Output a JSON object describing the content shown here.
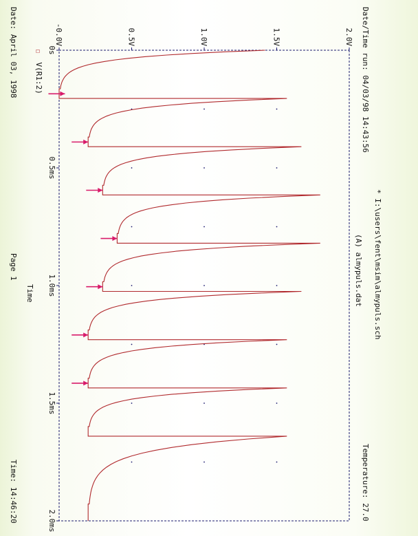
{
  "header": {
    "run_label": "Date/Time run: 04/03/98 14:43:56",
    "temperature": "Temperature: 27.0",
    "schematic": "* I:\\users\\fent\\msim\\almypuls.sch",
    "data_file": "(A) almypuls.dat"
  },
  "footer": {
    "date": "Date: April 03, 1998",
    "page": "Page 1",
    "time": "Time: 14:46:20"
  },
  "legend": {
    "marker": "□",
    "label": "V(R1:2)"
  },
  "colors": {
    "trace": "#b0282c",
    "marker": "#d81b6a",
    "frame": "#1a1a6e",
    "text": "#111111"
  },
  "chart_data": {
    "type": "line",
    "xlabel": "Time",
    "ylabel": "",
    "xlim": [
      0,
      2.0
    ],
    "ylim": [
      0,
      2.0
    ],
    "x_unit": "ms",
    "x_ticks": [
      "0s",
      "0.5ms",
      "1.0ms",
      "1.5ms",
      "2.0ms"
    ],
    "x_tick_values": [
      0,
      0.5,
      1.0,
      1.5,
      2.0
    ],
    "y_ticks": [
      "-0.0V",
      "0.5V",
      "1.0V",
      "1.5V",
      "2.0V"
    ],
    "y_tick_values": [
      0,
      0.5,
      1.0,
      1.5,
      2.0
    ],
    "grid": "dotted",
    "series": [
      {
        "name": "V(R1:2)",
        "pulses": [
          {
            "t_start": 0.0,
            "t_end": 0.205,
            "v_peak": 1.42,
            "v_floor": 0.0
          },
          {
            "t_start": 0.205,
            "t_end": 0.41,
            "v_peak": 1.57,
            "v_floor": 0.2
          },
          {
            "t_start": 0.41,
            "t_end": 0.615,
            "v_peak": 1.67,
            "v_floor": 0.3
          },
          {
            "t_start": 0.615,
            "t_end": 0.82,
            "v_peak": 1.8,
            "v_floor": 0.4
          },
          {
            "t_start": 0.82,
            "t_end": 1.025,
            "v_peak": 1.8,
            "v_floor": 0.3
          },
          {
            "t_start": 1.025,
            "t_end": 1.23,
            "v_peak": 1.67,
            "v_floor": 0.2
          },
          {
            "t_start": 1.23,
            "t_end": 1.435,
            "v_peak": 1.57,
            "v_floor": 0.2
          },
          {
            "t_start": 1.435,
            "t_end": 1.64,
            "v_peak": 1.57,
            "v_floor": 0.2
          },
          {
            "t_start": 1.64,
            "t_end": 2.0,
            "v_peak": 1.57,
            "v_floor": 0.2
          }
        ]
      }
    ],
    "annotations": [
      {
        "label": "arrow",
        "t": 0.185,
        "v": 0.04
      },
      {
        "label": "arrow",
        "t": 0.39,
        "v": 0.2
      },
      {
        "label": "arrow",
        "t": 0.595,
        "v": 0.3
      },
      {
        "label": "arrow",
        "t": 0.8,
        "v": 0.4
      },
      {
        "label": "arrow",
        "t": 1.005,
        "v": 0.3
      },
      {
        "label": "arrow",
        "t": 1.21,
        "v": 0.2
      },
      {
        "label": "arrow",
        "t": 1.415,
        "v": 0.2
      }
    ]
  }
}
